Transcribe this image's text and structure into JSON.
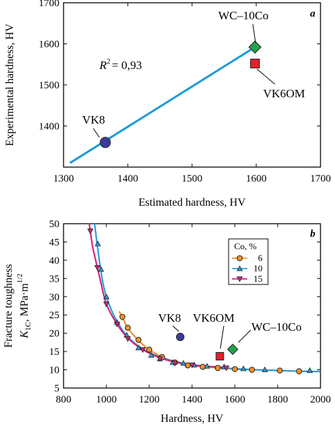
{
  "chart_data": [
    {
      "panel": "a",
      "type": "scatter",
      "xlabel": "Estimated hardness, HV",
      "ylabel": "Experimental hardness, HV",
      "xlim": [
        1300,
        1700
      ],
      "ylim": [
        1300,
        1700
      ],
      "xticks": [
        1300,
        1400,
        1500,
        1600,
        1700
      ],
      "yticks": [
        1400,
        1500,
        1600,
        1700
      ],
      "ytick_labels": [
        "1400",
        "1500",
        "1600",
        "1700"
      ],
      "xtick_labels": [
        "1300",
        "1400",
        "1500",
        "1600",
        "1700"
      ],
      "r2_text": "= 0,93",
      "fit_line": {
        "x": [
          1310,
          1598
        ],
        "y": [
          1310,
          1592
        ],
        "color": "#1a9ad6"
      },
      "points": [
        {
          "name": "VK8",
          "x": 1365,
          "y": 1360,
          "marker": "circle",
          "color": "#3b3b9b"
        },
        {
          "name": "WC–10Co",
          "x": 1598,
          "y": 1592,
          "marker": "diamond",
          "color": "#22a34a"
        },
        {
          "name": "VK6OM",
          "x": 1598,
          "y": 1552,
          "marker": "square",
          "color": "#e0202a"
        }
      ]
    },
    {
      "panel": "b",
      "type": "line",
      "xlabel": "Hardness, HV",
      "ylabel_line1": "Fracture toughness",
      "ylabel_line2": "K1C, MPa·m1/2",
      "ylabel_k": "K",
      "ylabel_sub": "1C",
      "ylabel_units": ", MPa·m",
      "ylabel_sup": "1/2",
      "xlim": [
        800,
        2000
      ],
      "ylim": [
        5,
        50
      ],
      "xticks": [
        800,
        1000,
        1200,
        1400,
        1600,
        1800,
        2000
      ],
      "xtick_labels": [
        "800",
        "1000",
        "1200",
        "1400",
        "1600",
        "1800",
        "2000"
      ],
      "yticks": [
        5,
        10,
        15,
        20,
        25,
        30,
        35,
        40,
        45,
        50
      ],
      "ytick_labels": [
        "5",
        "10",
        "15",
        "20",
        "25",
        "30",
        "35",
        "40",
        "45",
        "50"
      ],
      "legend": {
        "title": "Co, %",
        "position": "top-right"
      },
      "series": [
        {
          "name": "6",
          "marker": "circle",
          "color": "#f0922a",
          "x": [
            1075,
            1100,
            1150,
            1200,
            1260,
            1320,
            1380,
            1450,
            1520,
            1600,
            1680,
            1810,
            1900
          ],
          "y": [
            24.5,
            21.5,
            18.2,
            15.5,
            13.5,
            12.0,
            11.2,
            10.8,
            10.5,
            10.2,
            10.0,
            9.8,
            9.6
          ],
          "curve_x": [
            1060,
            1100,
            1150,
            1200,
            1260,
            1320,
            1400,
            1500,
            1600,
            1700,
            1800,
            1900,
            1940
          ],
          "curve_y": [
            26,
            21.5,
            18.0,
            15.5,
            13.5,
            12.2,
            11.2,
            10.6,
            10.2,
            10.0,
            9.8,
            9.6,
            9.55
          ]
        },
        {
          "name": "10",
          "marker": "triangle-up",
          "color": "#2e9ad6",
          "x": [
            960,
            975,
            1000,
            1050,
            1095,
            1150,
            1210,
            1250,
            1310,
            1360,
            1410,
            1470,
            1550,
            1640,
            1740,
            1950
          ],
          "y": [
            44.5,
            37.5,
            30,
            23,
            19.5,
            16,
            14,
            13,
            12,
            11.8,
            11.3,
            11,
            10.8,
            10.3,
            10,
            9.8
          ],
          "curve_x": [
            945,
            960,
            980,
            1000,
            1030,
            1060,
            1100,
            1150,
            1200,
            1260,
            1320,
            1400,
            1500,
            1600,
            1700,
            1800,
            1900,
            2000
          ],
          "curve_y": [
            50,
            43,
            35,
            30,
            25.5,
            22.2,
            19,
            16.5,
            14.7,
            13.3,
            12.3,
            11.4,
            10.8,
            10.3,
            10.0,
            9.8,
            9.6,
            9.5
          ]
        },
        {
          "name": "15",
          "marker": "triangle-down",
          "color": "#d0267a",
          "x": [
            925,
            958,
            1000,
            1050,
            1100,
            1170,
            1250,
            1320,
            1400,
            1560
          ],
          "y": [
            48,
            38,
            28,
            22.5,
            18.5,
            15.5,
            13,
            11.8,
            11.3,
            10.5
          ],
          "curve_x": [
            920,
            935,
            950,
            970,
            1000,
            1050,
            1100,
            1170,
            1250,
            1320,
            1400,
            1480,
            1560
          ],
          "curve_y": [
            50,
            44,
            40,
            35,
            28,
            22.5,
            18.7,
            15.5,
            13.3,
            12.1,
            11.3,
            10.9,
            10.6
          ]
        }
      ],
      "points": [
        {
          "name": "VK8",
          "x": 1345,
          "y": 19,
          "marker": "circle",
          "color": "#3b3b9b"
        },
        {
          "name": "VK6OM",
          "x": 1530,
          "y": 13.7,
          "marker": "square",
          "color": "#e0202a"
        },
        {
          "name": "WC–10Co",
          "x": 1590,
          "y": 15.6,
          "marker": "diamond",
          "color": "#22a34a"
        }
      ]
    }
  ]
}
